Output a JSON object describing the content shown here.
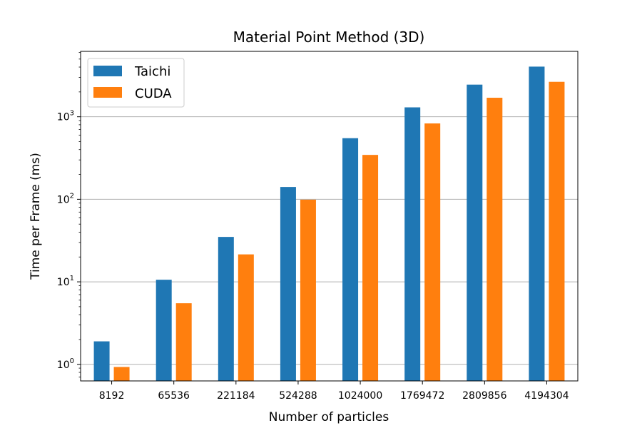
{
  "chart_data": {
    "type": "bar",
    "title": "Material Point Method (3D)",
    "xlabel": "Number of particles",
    "ylabel": "Time per Frame (ms)",
    "yscale": "log",
    "ylim": [
      0.63,
      6200
    ],
    "grid": "y-major",
    "legend_position": "top-left",
    "categories": [
      "8192",
      "65536",
      "221184",
      "524288",
      "1024000",
      "1769472",
      "2809856",
      "4194304"
    ],
    "series": [
      {
        "name": "Taichi",
        "color": "#1f77b4",
        "values": [
          1.9,
          10.6,
          35,
          141,
          550,
          1300,
          2450,
          4050
        ]
      },
      {
        "name": "CUDA",
        "color": "#ff7f0e",
        "values": [
          0.93,
          5.5,
          21.5,
          99,
          345,
          830,
          1700,
          2650
        ]
      }
    ],
    "yticks": [
      {
        "base": "10",
        "exp": "0",
        "value": 1
      },
      {
        "base": "10",
        "exp": "1",
        "value": 10
      },
      {
        "base": "10",
        "exp": "2",
        "value": 100
      },
      {
        "base": "10",
        "exp": "3",
        "value": 1000
      }
    ]
  }
}
